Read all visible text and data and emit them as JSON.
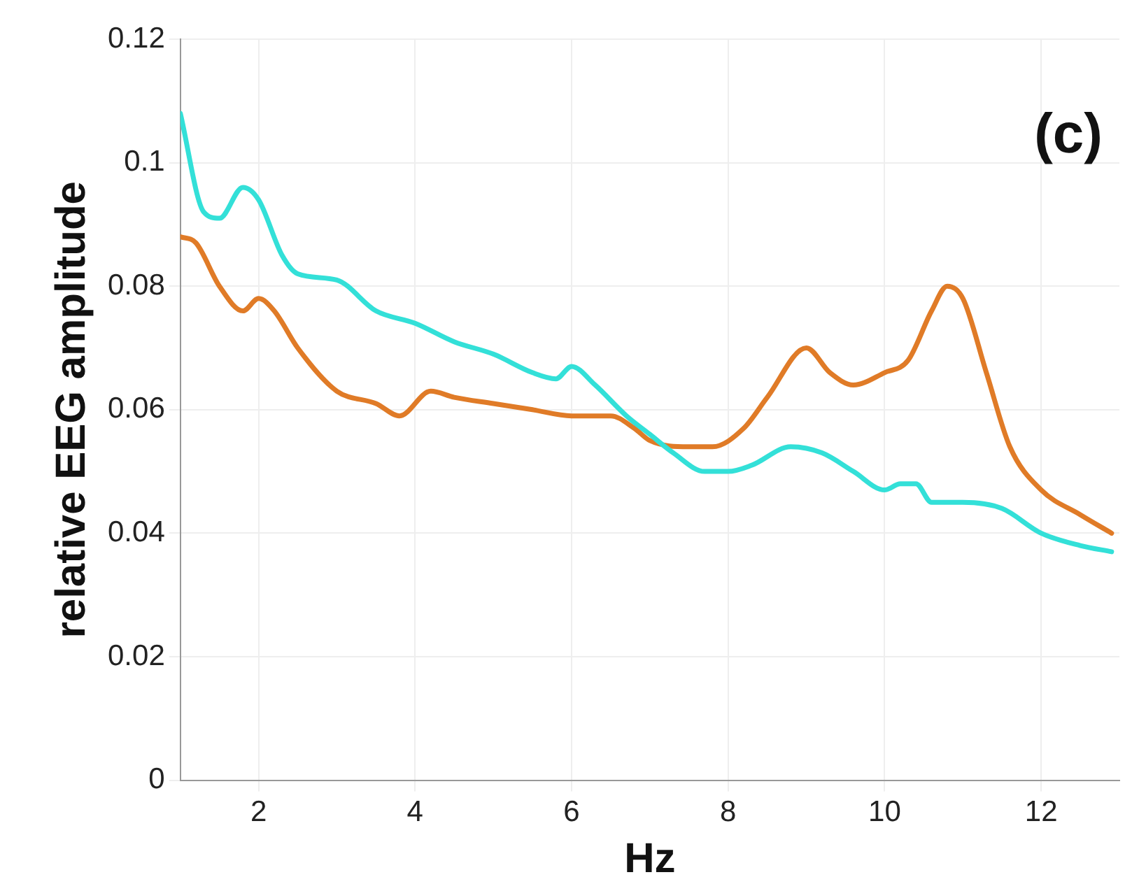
{
  "chart_data": {
    "type": "line",
    "xlabel": "Hz",
    "ylabel": "relative EEG amplitude",
    "annotations": [
      "(c)"
    ],
    "xlim": [
      1,
      13
    ],
    "xticks": [
      2,
      4,
      6,
      8,
      10,
      12
    ],
    "ylim": [
      0,
      0.12
    ],
    "yticks": [
      0,
      0.02,
      0.04,
      0.06,
      0.08,
      0.1,
      0.12
    ],
    "grid": true,
    "legend": false,
    "marker": "none",
    "line_style": "solid",
    "series": [
      {
        "color": "#33e0d8",
        "x": [
          1,
          1.3,
          1.5,
          1.8,
          2,
          2.3,
          2.5,
          3,
          3.5,
          4,
          4.5,
          5,
          5.5,
          5.8,
          6,
          6.3,
          6.7,
          7,
          7.3,
          7.7,
          8,
          8.3,
          8.8,
          9.2,
          9.6,
          10,
          10.2,
          10.4,
          10.6,
          11,
          11.5,
          12,
          12.5,
          12.9
        ],
        "values": [
          0.108,
          0.092,
          0.091,
          0.096,
          0.094,
          0.085,
          0.082,
          0.081,
          0.076,
          0.074,
          0.071,
          0.069,
          0.066,
          0.065,
          0.067,
          0.064,
          0.059,
          0.056,
          0.053,
          0.05,
          0.05,
          0.051,
          0.054,
          0.053,
          0.05,
          0.047,
          0.048,
          0.048,
          0.045,
          0.045,
          0.044,
          0.04,
          0.038,
          0.037
        ]
      },
      {
        "color": "#e07b27",
        "x": [
          1,
          1.2,
          1.5,
          1.8,
          2,
          2.2,
          2.5,
          3,
          3.5,
          3.8,
          4.2,
          4.5,
          5,
          5.5,
          6,
          6.5,
          6.8,
          7,
          7.5,
          7.8,
          8.2,
          8.5,
          9,
          9.3,
          9.6,
          10,
          10.3,
          10.6,
          10.8,
          11,
          11.3,
          11.6,
          12,
          12.5,
          12.9
        ],
        "values": [
          0.088,
          0.087,
          0.08,
          0.076,
          0.078,
          0.076,
          0.07,
          0.063,
          0.061,
          0.059,
          0.063,
          0.062,
          0.061,
          0.06,
          0.059,
          0.059,
          0.057,
          0.055,
          0.054,
          0.054,
          0.057,
          0.062,
          0.07,
          0.066,
          0.064,
          0.066,
          0.068,
          0.076,
          0.08,
          0.078,
          0.066,
          0.054,
          0.047,
          0.043,
          0.04
        ]
      }
    ]
  }
}
